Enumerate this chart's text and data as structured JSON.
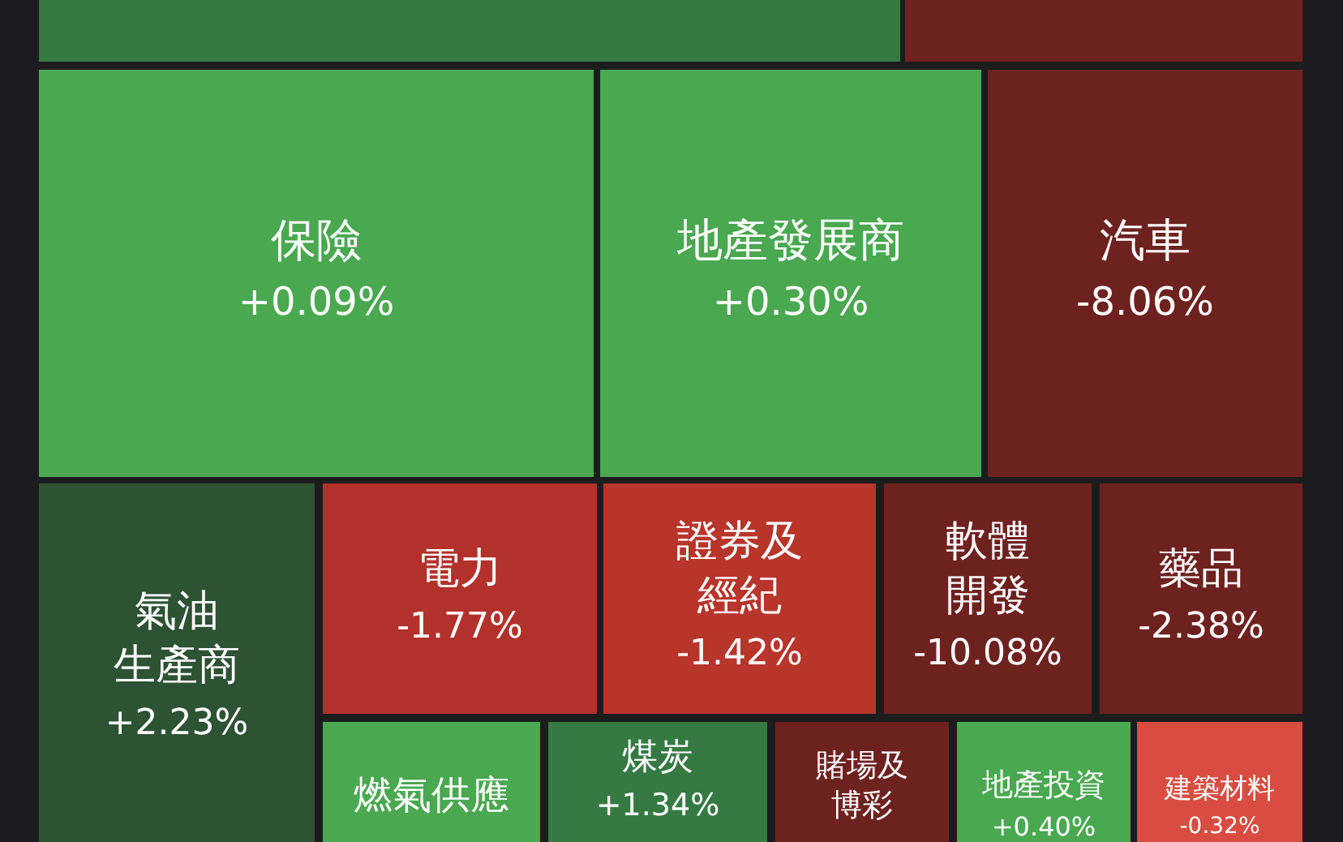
{
  "chart_data": {
    "type": "other",
    "categories": [
      null,
      null,
      "保險",
      "地產發展商",
      "汽車",
      "氣油生產商",
      "電力",
      "證券及經紀",
      "軟體開發",
      "藥品",
      "燃氣供應",
      "煤炭",
      "賭場及博彩",
      "地產投資",
      "建築材料"
    ],
    "values": [
      null,
      null,
      0.09,
      0.3,
      -8.06,
      2.23,
      -1.77,
      -1.42,
      -10.08,
      -2.38,
      null,
      1.34,
      null,
      0.4,
      -0.32
    ],
    "value_labels": [
      null,
      null,
      "+0.09%",
      "+0.30%",
      "-8.06%",
      "+2.23%",
      "-1.77%",
      "-1.42%",
      "-10.08%",
      "-2.38%",
      null,
      "+1.34%",
      null,
      "+0.40%",
      "-0.32%"
    ],
    "colors": [
      "#367a43",
      "#6e2220",
      "#4aa850",
      "#4aa850",
      "#6e2220",
      "#2d5234",
      "#b3312b",
      "#b8352c",
      "#6e2220",
      "#6e2220",
      "#4aa850",
      "#367a43",
      "#6e2220",
      "#4aa850",
      "#d94c41"
    ]
  }
}
